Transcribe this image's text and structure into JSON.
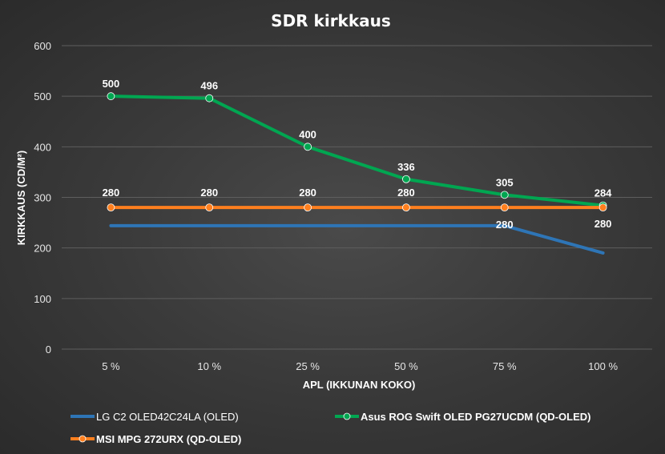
{
  "chart_data": {
    "type": "line",
    "title": "SDR kirkkaus",
    "xlabel": "APL (IKKUNAN KOKO)",
    "ylabel": "KIRKKAUS (CD/M²)",
    "categories": [
      "5 %",
      "10 %",
      "25 %",
      "50 %",
      "75 %",
      "100 %"
    ],
    "ylim": [
      0,
      600
    ],
    "yticks": [
      0,
      100,
      200,
      300,
      400,
      500,
      600
    ],
    "grid": true,
    "legend_position": "bottom",
    "series": [
      {
        "name": "LG C2 OLED42C24LA (OLED)",
        "values": [
          244,
          244,
          244,
          244,
          244,
          190
        ],
        "color": "#2e75b6",
        "markers": false,
        "show_labels": false
      },
      {
        "name": "Asus ROG Swift OLED PG27UCDM (QD-OLED)",
        "values": [
          500,
          496,
          400,
          336,
          305,
          284
        ],
        "color": "#00a651",
        "markers": true,
        "show_labels": true
      },
      {
        "name": "MSI MPG 272URX (QD-OLED)",
        "values": [
          280,
          280,
          280,
          280,
          280,
          280
        ],
        "color": "#ff7f1e",
        "markers": true,
        "show_labels": true
      }
    ]
  }
}
